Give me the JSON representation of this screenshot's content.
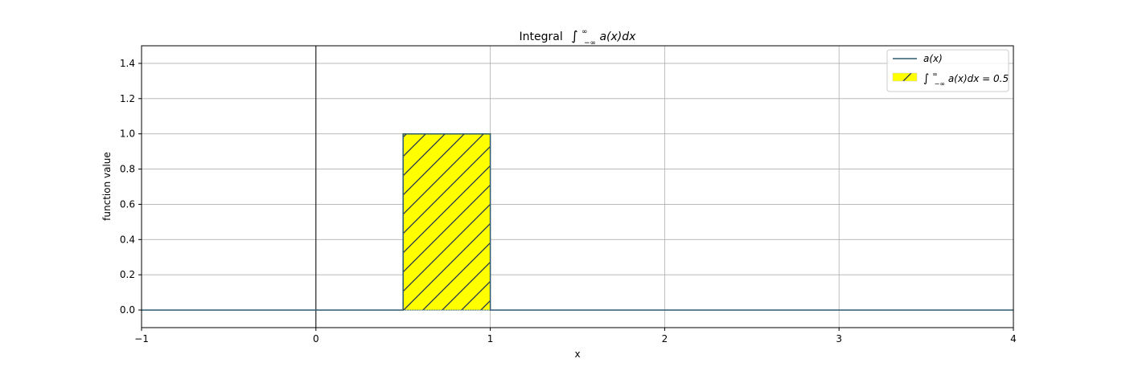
{
  "chart_data": {
    "type": "line",
    "title_prefix": "Integral",
    "title_math": "∫-∞^∞ a(x)dx",
    "xlabel": "x",
    "ylabel": "function value",
    "xlim": [
      -1,
      4
    ],
    "ylim": [
      -0.1,
      1.5
    ],
    "xticks": [
      -1,
      0,
      1,
      2,
      3,
      4
    ],
    "xtick_labels": [
      "−1",
      "0",
      "1",
      "2",
      "3",
      "4"
    ],
    "yticks": [
      0.0,
      0.2,
      0.4,
      0.6,
      0.8,
      1.0,
      1.2,
      1.4
    ],
    "ytick_labels": [
      "0.0",
      "0.2",
      "0.4",
      "0.6",
      "0.8",
      "1.0",
      "1.2",
      "1.4"
    ],
    "grid": true,
    "legend_position": "top-right",
    "series": [
      {
        "name": "a(x)",
        "kind": "line",
        "color": "#2f5b6e",
        "x": [
          -1,
          0.5,
          0.5,
          1,
          1,
          4
        ],
        "y": [
          0,
          0,
          1,
          1,
          0,
          0
        ]
      },
      {
        "name": "∫-∞^∞ a(x)dx = 0.5",
        "kind": "filled_area",
        "fill_color": "#ffff00",
        "hatch": "/",
        "x_range": [
          0.5,
          1
        ],
        "y_range": [
          0,
          1
        ],
        "integral_value": 0.5
      }
    ],
    "vertical_lines": [
      {
        "x": 0,
        "color": "#000000"
      }
    ]
  },
  "legend": {
    "entries": [
      {
        "prefix": "",
        "math": "a(x)"
      },
      {
        "prefix": "",
        "math": "a(x)dx = 0.5"
      }
    ]
  }
}
